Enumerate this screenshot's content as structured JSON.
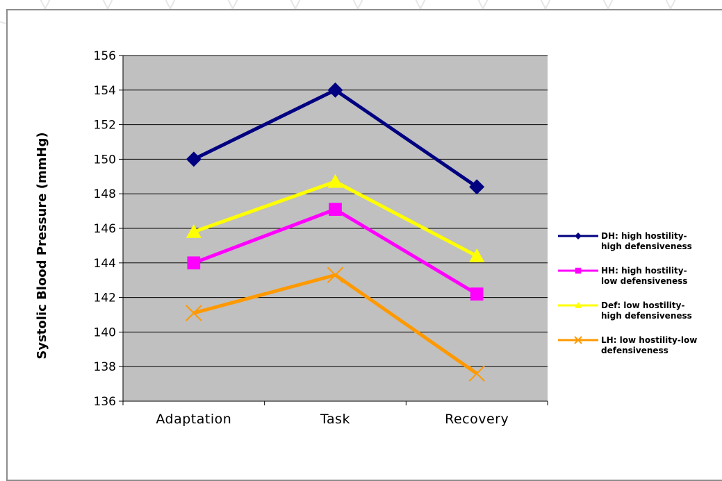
{
  "chart_data": {
    "type": "line",
    "categories": [
      "Adaptation",
      "Task",
      "Recovery"
    ],
    "ylabel": "Systolic Blood Pressure (mmHg)",
    "xlabel": "",
    "ylim": [
      136,
      156
    ],
    "yticks": [
      136,
      138,
      140,
      142,
      144,
      146,
      148,
      150,
      152,
      154,
      156
    ],
    "grid": true,
    "plot_background": "#c0c0c0",
    "legend_position": "right",
    "series": [
      {
        "name": "DH: high hostility-high defensiveness",
        "legend_lines": [
          "DH: high hostility-",
          "high defensiveness"
        ],
        "values": [
          150.0,
          154.0,
          148.4
        ],
        "color": "#000080",
        "marker": "diamond"
      },
      {
        "name": "HH: high hostility-low defensiveness",
        "legend_lines": [
          "HH: high hostility-",
          "low defensiveness"
        ],
        "values": [
          144.0,
          147.1,
          142.2
        ],
        "color": "#ff00ff",
        "marker": "square"
      },
      {
        "name": "Def: low hostility-high defensiveness",
        "legend_lines": [
          "Def: low hostility-",
          "high defensiveness"
        ],
        "values": [
          145.8,
          148.7,
          144.4
        ],
        "color": "#ffff00",
        "marker": "triangle"
      },
      {
        "name": "LH: low hostility-low defensiveness",
        "legend_lines": [
          "LH: low hostility-low",
          "defensiveness"
        ],
        "values": [
          141.1,
          143.3,
          137.6
        ],
        "color": "#ff9900",
        "marker": "x"
      }
    ]
  }
}
